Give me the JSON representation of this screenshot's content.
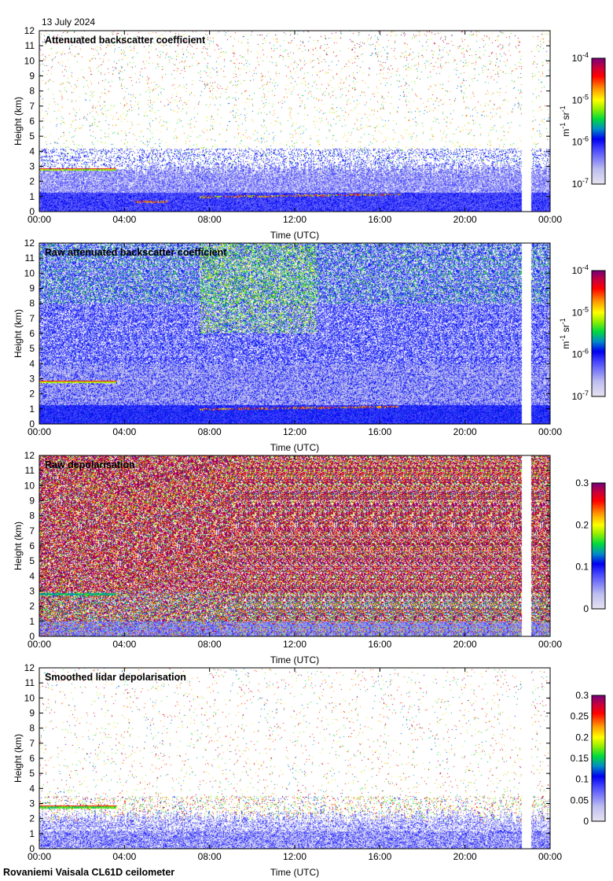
{
  "date_label": "13 July 2024",
  "footer": "Rovaniemi Vaisala CL61D ceilometer",
  "chart_data": [
    {
      "type": "heatmap",
      "title": "Attenuated backscatter coefficient",
      "xlabel": "Time (UTC)",
      "ylabel": "Height (km)",
      "xlim": [
        0,
        24
      ],
      "ylim": [
        0,
        12
      ],
      "xticks": [
        {
          "value": 0,
          "label": "00:00"
        },
        {
          "value": 4,
          "label": "04:00"
        },
        {
          "value": 8,
          "label": "08:00"
        },
        {
          "value": 12,
          "label": "12:00"
        },
        {
          "value": 16,
          "label": "16:00"
        },
        {
          "value": 20,
          "label": "20:00"
        },
        {
          "value": 24,
          "label": "00:00"
        }
      ],
      "yticks": [
        "0",
        "1",
        "2",
        "3",
        "4",
        "5",
        "6",
        "7",
        "8",
        "9",
        "10",
        "11",
        "12"
      ],
      "colorbar": {
        "scale": "log",
        "range": [
          1e-07,
          0.0001
        ],
        "unit": [
          "m",
          "-1",
          " sr",
          "-1"
        ],
        "ticks": [
          {
            "base": "10",
            "exp": "-7"
          },
          {
            "base": "10",
            "exp": "-6"
          },
          {
            "base": "10",
            "exp": "-5"
          },
          {
            "base": "10",
            "exp": "-4"
          }
        ]
      },
      "data_gap_hours": [
        22.65,
        23.1
      ],
      "features": {
        "cloud_layer_km": 2.8,
        "cloud_layer_hours": [
          0,
          3.6
        ],
        "boundary_layer_km": 1.0
      }
    },
    {
      "type": "heatmap",
      "title": "Raw attenuated backscatter coefficient",
      "xlabel": "Time (UTC)",
      "ylabel": "Height (km)",
      "xlim": [
        0,
        24
      ],
      "ylim": [
        0,
        12
      ],
      "xticks": [
        {
          "value": 0,
          "label": "00:00"
        },
        {
          "value": 4,
          "label": "04:00"
        },
        {
          "value": 8,
          "label": "08:00"
        },
        {
          "value": 12,
          "label": "12:00"
        },
        {
          "value": 16,
          "label": "16:00"
        },
        {
          "value": 20,
          "label": "20:00"
        },
        {
          "value": 24,
          "label": "00:00"
        }
      ],
      "yticks": [
        "0",
        "1",
        "2",
        "3",
        "4",
        "5",
        "6",
        "7",
        "8",
        "9",
        "10",
        "11",
        "12"
      ],
      "colorbar": {
        "scale": "log",
        "range": [
          1e-07,
          0.0001
        ],
        "unit": [
          "m",
          "-1",
          " sr",
          "-1"
        ],
        "ticks": [
          {
            "base": "10",
            "exp": "-7"
          },
          {
            "base": "10",
            "exp": "-6"
          },
          {
            "base": "10",
            "exp": "-5"
          },
          {
            "base": "10",
            "exp": "-4"
          }
        ]
      },
      "data_gap_hours": [
        22.65,
        23.1
      ]
    },
    {
      "type": "heatmap",
      "title": "Raw depolarisation",
      "xlabel": "Time (UTC)",
      "ylabel": "Height (km)",
      "xlim": [
        0,
        24
      ],
      "ylim": [
        0,
        12
      ],
      "xticks": [
        {
          "value": 0,
          "label": "00:00"
        },
        {
          "value": 4,
          "label": "04:00"
        },
        {
          "value": 8,
          "label": "08:00"
        },
        {
          "value": 12,
          "label": "12:00"
        },
        {
          "value": 16,
          "label": "16:00"
        },
        {
          "value": 20,
          "label": "20:00"
        },
        {
          "value": 24,
          "label": "00:00"
        }
      ],
      "yticks": [
        "0",
        "1",
        "2",
        "3",
        "4",
        "5",
        "6",
        "7",
        "8",
        "9",
        "10",
        "11",
        "12"
      ],
      "colorbar": {
        "scale": "linear",
        "range": [
          0,
          0.3
        ],
        "unit": [],
        "ticks": [
          {
            "base": "0",
            "exp": ""
          },
          {
            "base": "0.1",
            "exp": ""
          },
          {
            "base": "0.2",
            "exp": ""
          },
          {
            "base": "0.3",
            "exp": ""
          }
        ]
      },
      "data_gap_hours": [
        22.65,
        23.1
      ]
    },
    {
      "type": "heatmap",
      "title": "Smoothed lidar depolarisation",
      "xlabel": "Time (UTC)",
      "ylabel": "Height (km)",
      "xlim": [
        0,
        24
      ],
      "ylim": [
        0,
        12
      ],
      "xticks": [
        {
          "value": 0,
          "label": "00:00"
        },
        {
          "value": 4,
          "label": "04:00"
        },
        {
          "value": 8,
          "label": "08:00"
        },
        {
          "value": 12,
          "label": "12:00"
        },
        {
          "value": 16,
          "label": "16:00"
        },
        {
          "value": 20,
          "label": "20:00"
        },
        {
          "value": 24,
          "label": "00:00"
        }
      ],
      "yticks": [
        "0",
        "1",
        "2",
        "3",
        "4",
        "5",
        "6",
        "7",
        "8",
        "9",
        "10",
        "11",
        "12"
      ],
      "colorbar": {
        "scale": "linear",
        "range": [
          0,
          0.3
        ],
        "unit": [],
        "ticks": [
          {
            "base": "0",
            "exp": ""
          },
          {
            "base": "0.05",
            "exp": ""
          },
          {
            "base": "0.1",
            "exp": ""
          },
          {
            "base": "0.15",
            "exp": ""
          },
          {
            "base": "0.2",
            "exp": ""
          },
          {
            "base": "0.25",
            "exp": ""
          },
          {
            "base": "0.3",
            "exp": ""
          }
        ]
      },
      "data_gap_hours": [
        22.65,
        23.1
      ]
    }
  ]
}
